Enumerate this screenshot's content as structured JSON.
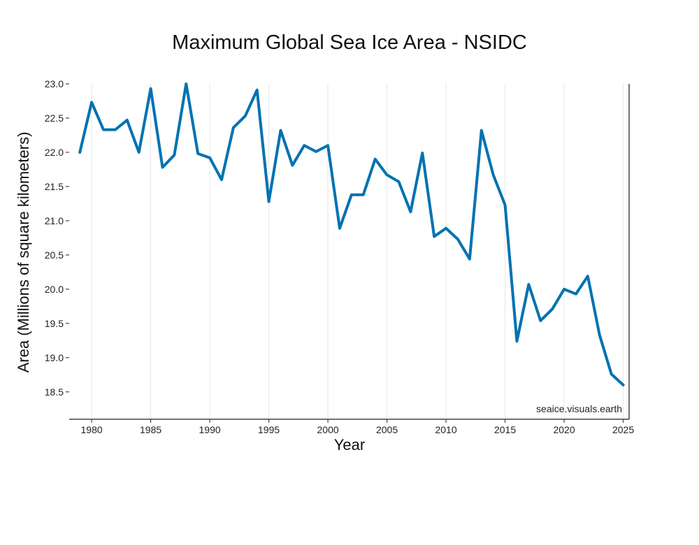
{
  "chart_data": {
    "type": "line",
    "title": "Maximum Global Sea Ice Area - NSIDC",
    "xlabel": "Year",
    "ylabel": "Area (Millions of square kilometers)",
    "xlim": [
      1978.1,
      2025.5
    ],
    "ylim": [
      18.1,
      23.0
    ],
    "x_ticks": [
      1980,
      1985,
      1990,
      1995,
      2000,
      2005,
      2010,
      2015,
      2020,
      2025
    ],
    "y_ticks": [
      18.5,
      19.0,
      19.5,
      20.0,
      20.5,
      21.0,
      21.5,
      22.0,
      22.5,
      23.0
    ],
    "grid": true,
    "series": [
      {
        "name": "Maximum Global Sea Ice Area",
        "color": "#0072b2",
        "x": [
          1979,
          1980,
          1981,
          1982,
          1983,
          1984,
          1985,
          1986,
          1987,
          1988,
          1989,
          1990,
          1991,
          1992,
          1993,
          1994,
          1995,
          1996,
          1997,
          1998,
          1999,
          2000,
          2001,
          2002,
          2003,
          2004,
          2005,
          2006,
          2007,
          2008,
          2009,
          2010,
          2011,
          2012,
          2013,
          2014,
          2015,
          2016,
          2017,
          2018,
          2019,
          2020,
          2021,
          2022,
          2023,
          2024,
          2025
        ],
        "y": [
          22.0,
          22.73,
          22.33,
          22.33,
          22.47,
          22.0,
          22.93,
          21.78,
          21.96,
          23.0,
          21.98,
          21.92,
          21.6,
          22.36,
          22.53,
          22.91,
          21.28,
          22.32,
          21.81,
          22.1,
          22.01,
          22.1,
          20.89,
          21.38,
          21.38,
          21.9,
          21.67,
          21.57,
          21.13,
          21.99,
          20.77,
          20.89,
          20.73,
          20.44,
          22.32,
          21.67,
          21.23,
          19.24,
          20.07,
          19.54,
          19.71,
          20.0,
          19.93,
          20.19,
          19.33,
          18.76,
          18.6
        ]
      }
    ]
  },
  "watermark": "seaice.visuals.earth"
}
